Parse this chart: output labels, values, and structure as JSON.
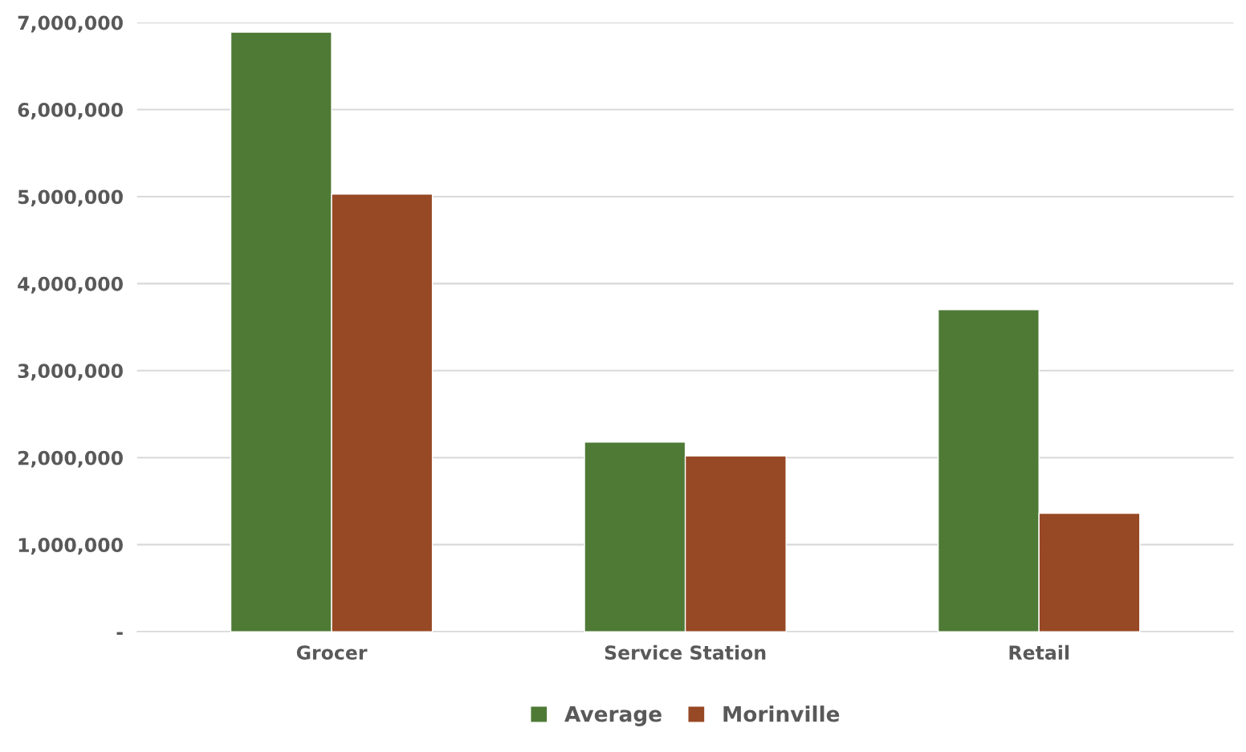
{
  "chart_data": {
    "type": "bar",
    "categories": [
      "Grocer",
      "Service Station",
      "Retail"
    ],
    "series": [
      {
        "name": "Average",
        "color": "#4e7a36",
        "values": [
          6890000,
          2180000,
          3700000
        ]
      },
      {
        "name": "Morinville",
        "color": "#974824",
        "values": [
          5030000,
          2020000,
          1360000
        ]
      }
    ],
    "ylim": [
      0,
      7000000
    ],
    "yticks": [
      {
        "value": 0,
        "label": "-"
      },
      {
        "value": 1000000,
        "label": "1,000,000"
      },
      {
        "value": 2000000,
        "label": "2,000,000"
      },
      {
        "value": 3000000,
        "label": "3,000,000"
      },
      {
        "value": 4000000,
        "label": "4,000,000"
      },
      {
        "value": 5000000,
        "label": "5,000,000"
      },
      {
        "value": 6000000,
        "label": "6,000,000"
      },
      {
        "value": 7000000,
        "label": "7,000,000"
      }
    ],
    "grid": "y",
    "legend": "bottom"
  }
}
